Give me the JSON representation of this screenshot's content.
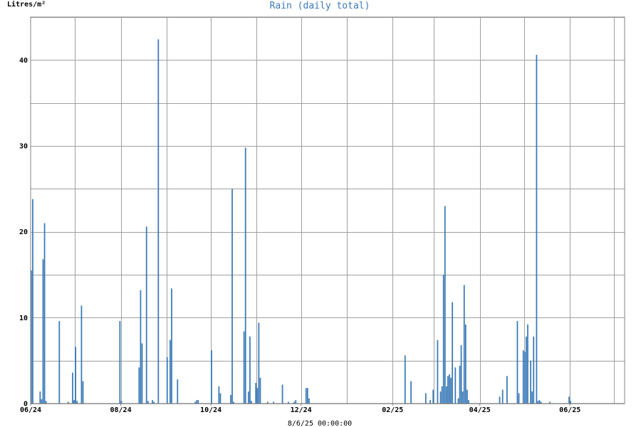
{
  "chart_data": {
    "type": "bar",
    "title": "Rain (daily total)",
    "ylabel": "Litres/m²",
    "xlabel": "",
    "footer": "8/6/25 00:00:00",
    "ylim": [
      0,
      45
    ],
    "xlim": [
      "2024-06-01",
      "2025-07-08"
    ],
    "yticks": [
      0,
      10,
      20,
      30,
      40
    ],
    "xticks": [
      {
        "date": "2024-06-01",
        "label": "06/24"
      },
      {
        "date": "2024-08-01",
        "label": "08/24"
      },
      {
        "date": "2024-10-01",
        "label": "10/24"
      },
      {
        "date": "2024-12-01",
        "label": "12/24"
      },
      {
        "date": "2025-02-01",
        "label": "02/25"
      },
      {
        "date": "2025-04-01",
        "label": "04/25"
      },
      {
        "date": "2025-06-01",
        "label": "06/25"
      }
    ],
    "grid": true,
    "bar_color": "#3a7ab8",
    "series": [
      {
        "points": [
          [
            "2024-06-01",
            15.5
          ],
          [
            "2024-06-02",
            23.8
          ],
          [
            "2024-06-07",
            1.4
          ],
          [
            "2024-06-08",
            0.5
          ],
          [
            "2024-06-09",
            16.8
          ],
          [
            "2024-06-10",
            21.0
          ],
          [
            "2024-06-11",
            0.3
          ],
          [
            "2024-06-20",
            9.6
          ],
          [
            "2024-06-26",
            0.2
          ],
          [
            "2024-06-29",
            3.6
          ],
          [
            "2024-06-30",
            0.4
          ],
          [
            "2024-07-01",
            6.6
          ],
          [
            "2024-07-02",
            0.3
          ],
          [
            "2024-07-05",
            11.4
          ],
          [
            "2024-07-06",
            2.6
          ],
          [
            "2024-07-31",
            9.6
          ],
          [
            "2024-08-01",
            0.3
          ],
          [
            "2024-08-13",
            4.2
          ],
          [
            "2024-08-14",
            13.2
          ],
          [
            "2024-08-15",
            7.0
          ],
          [
            "2024-08-18",
            20.6
          ],
          [
            "2024-08-19",
            0.3
          ],
          [
            "2024-08-22",
            0.4
          ],
          [
            "2024-08-23",
            0.2
          ],
          [
            "2024-08-26",
            42.4
          ],
          [
            "2024-09-01",
            5.4
          ],
          [
            "2024-09-03",
            7.4
          ],
          [
            "2024-09-04",
            13.4
          ],
          [
            "2024-09-08",
            2.8
          ],
          [
            "2024-09-20",
            0.2
          ],
          [
            "2024-09-21",
            0.4
          ],
          [
            "2024-09-22",
            0.4
          ],
          [
            "2024-10-01",
            6.2
          ],
          [
            "2024-10-06",
            2.0
          ],
          [
            "2024-10-07",
            1.2
          ],
          [
            "2024-10-14",
            1.0
          ],
          [
            "2024-10-15",
            25.0
          ],
          [
            "2024-10-16",
            0.2
          ],
          [
            "2024-10-23",
            8.4
          ],
          [
            "2024-10-24",
            29.8
          ],
          [
            "2024-10-26",
            1.4
          ],
          [
            "2024-10-27",
            7.8
          ],
          [
            "2024-10-28",
            0.3
          ],
          [
            "2024-10-31",
            2.4
          ],
          [
            "2024-11-01",
            1.8
          ],
          [
            "2024-11-02",
            9.4
          ],
          [
            "2024-11-03",
            3.0
          ],
          [
            "2024-11-08",
            0.2
          ],
          [
            "2024-11-12",
            0.2
          ],
          [
            "2024-11-18",
            2.2
          ],
          [
            "2024-11-22",
            0.2
          ],
          [
            "2024-11-26",
            0.2
          ],
          [
            "2024-11-27",
            0.4
          ],
          [
            "2024-12-04",
            1.8
          ],
          [
            "2024-12-05",
            1.8
          ],
          [
            "2024-12-06",
            0.6
          ],
          [
            "2025-02-09",
            5.6
          ],
          [
            "2025-02-13",
            2.6
          ],
          [
            "2025-02-23",
            1.2
          ],
          [
            "2025-02-26",
            0.4
          ],
          [
            "2025-02-28",
            1.6
          ],
          [
            "2025-03-03",
            7.4
          ],
          [
            "2025-03-05",
            1.4
          ],
          [
            "2025-03-06",
            2.0
          ],
          [
            "2025-03-07",
            15.0
          ],
          [
            "2025-03-08",
            23.0
          ],
          [
            "2025-03-09",
            2.0
          ],
          [
            "2025-03-10",
            3.2
          ],
          [
            "2025-03-11",
            3.4
          ],
          [
            "2025-03-12",
            3.0
          ],
          [
            "2025-03-13",
            11.8
          ],
          [
            "2025-03-15",
            4.2
          ],
          [
            "2025-03-17",
            0.6
          ],
          [
            "2025-03-18",
            4.4
          ],
          [
            "2025-03-19",
            6.8
          ],
          [
            "2025-03-20",
            1.4
          ],
          [
            "2025-03-21",
            13.8
          ],
          [
            "2025-03-22",
            9.2
          ],
          [
            "2025-03-23",
            1.6
          ],
          [
            "2025-03-24",
            0.4
          ],
          [
            "2025-04-14",
            0.8
          ],
          [
            "2025-04-16",
            1.6
          ],
          [
            "2025-04-19",
            3.2
          ],
          [
            "2025-04-26",
            9.6
          ],
          [
            "2025-04-27",
            1.2
          ],
          [
            "2025-04-30",
            6.2
          ],
          [
            "2025-05-01",
            6.0
          ],
          [
            "2025-05-02",
            7.8
          ],
          [
            "2025-05-03",
            9.2
          ],
          [
            "2025-05-05",
            5.0
          ],
          [
            "2025-05-06",
            1.4
          ],
          [
            "2025-05-07",
            7.8
          ],
          [
            "2025-05-09",
            40.6
          ],
          [
            "2025-05-10",
            0.3
          ],
          [
            "2025-05-11",
            0.4
          ],
          [
            "2025-05-12",
            0.2
          ],
          [
            "2025-05-18",
            0.2
          ],
          [
            "2025-05-31",
            0.8
          ],
          [
            "2025-06-01",
            0.3
          ]
        ]
      }
    ]
  }
}
